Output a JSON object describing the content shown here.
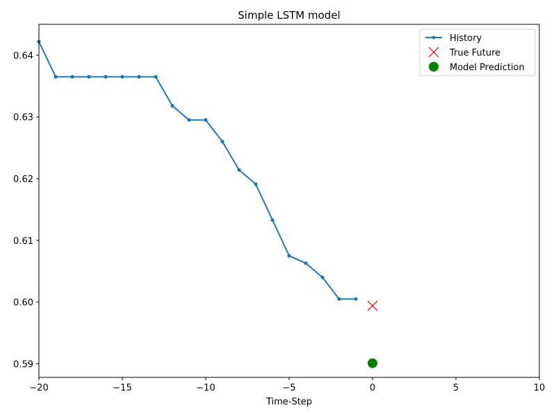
{
  "chart_data": {
    "type": "line",
    "title": "Simple LSTM model",
    "xlabel": "Time-Step",
    "ylabel": "",
    "xlim": [
      -20,
      10
    ],
    "ylim": [
      0.5878,
      0.645
    ],
    "grid": false,
    "legend_position": "top-right",
    "x_ticks": [
      -20,
      -15,
      -10,
      -5,
      0,
      5,
      10
    ],
    "x_tick_labels": [
      "−20",
      "−15",
      "−10",
      "−5",
      "0",
      "5",
      "10"
    ],
    "y_ticks": [
      0.59,
      0.6,
      0.61,
      0.62,
      0.63,
      0.64
    ],
    "y_tick_labels": [
      "0.59",
      "0.60",
      "0.61",
      "0.62",
      "0.63",
      "0.64"
    ],
    "series": [
      {
        "name": "History",
        "kind": "line-with-dots",
        "color": "#1f77b4",
        "x": [
          -20,
          -19,
          -18,
          -17,
          -16,
          -15,
          -14,
          -13,
          -12,
          -11,
          -10,
          -9,
          -8,
          -7,
          -6,
          -5,
          -4,
          -3,
          -2,
          -1
        ],
        "y": [
          0.6422,
          0.6365,
          0.6365,
          0.6365,
          0.6365,
          0.6365,
          0.6365,
          0.6365,
          0.6318,
          0.6295,
          0.6295,
          0.626,
          0.6214,
          0.6191,
          0.6133,
          0.6075,
          0.6063,
          0.604,
          0.6005,
          0.6005
        ]
      },
      {
        "name": "True Future",
        "kind": "x-marker",
        "color": "#ff0000",
        "x": [
          0
        ],
        "y": [
          0.5994
        ]
      },
      {
        "name": "Model Prediction",
        "kind": "filled-circle",
        "color": "#008000",
        "x": [
          0
        ],
        "y": [
          0.5901
        ]
      }
    ]
  }
}
